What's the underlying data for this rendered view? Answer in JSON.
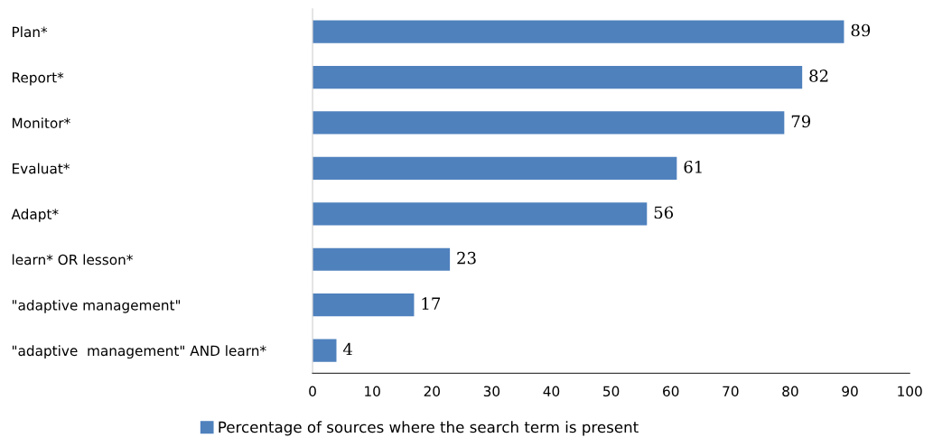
{
  "chart_data": {
    "type": "bar",
    "orientation": "horizontal",
    "categories": [
      "Plan*",
      "Report*",
      "Monitor*",
      "Evaluat*",
      "Adapt*",
      "learn* OR lesson*",
      "\"adaptive management\"",
      "\"adaptive  management\" AND learn*"
    ],
    "series": [
      {
        "name": "Percentage of sources where the search term is present",
        "color": "#4f81bd",
        "values": [
          89,
          82,
          79,
          61,
          56,
          23,
          17,
          4
        ]
      }
    ],
    "xlim": [
      0,
      100
    ],
    "xticks": [
      0,
      10,
      20,
      30,
      40,
      50,
      60,
      70,
      80,
      90,
      100
    ],
    "data_labels": true,
    "grid": false,
    "legend": "bottom"
  }
}
